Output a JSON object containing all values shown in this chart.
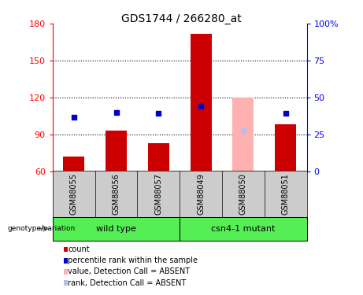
{
  "title": "GDS1744 / 266280_at",
  "samples": [
    "GSM88055",
    "GSM88056",
    "GSM88057",
    "GSM88049",
    "GSM88050",
    "GSM88051"
  ],
  "count_values": [
    72,
    93,
    83,
    172,
    null,
    98
  ],
  "count_absent": [
    null,
    null,
    null,
    null,
    120,
    null
  ],
  "rank_values": [
    104,
    108,
    107,
    113,
    null,
    107
  ],
  "rank_absent": [
    null,
    null,
    null,
    null,
    93,
    null
  ],
  "ylim_left": [
    60,
    180
  ],
  "ylim_right": [
    0,
    100
  ],
  "yticks_left": [
    60,
    90,
    120,
    150,
    180
  ],
  "yticks_right": [
    0,
    25,
    50,
    75,
    100
  ],
  "ytick_right_labels": [
    "0",
    "25",
    "50",
    "75",
    "100%"
  ],
  "bar_color": "#cc0000",
  "bar_absent_color": "#ffb0b0",
  "rank_color": "#0000cc",
  "rank_absent_color": "#b8bce8",
  "bg_color": "#ffffff",
  "group_bg_color": "#55ee55",
  "sample_bg_color": "#cccccc",
  "bar_width": 0.5,
  "grid_yticks": [
    90,
    120,
    150
  ],
  "legend_items": [
    {
      "color": "#cc0000",
      "label": "count"
    },
    {
      "color": "#0000cc",
      "label": "percentile rank within the sample"
    },
    {
      "color": "#ffb0b0",
      "label": "value, Detection Call = ABSENT"
    },
    {
      "color": "#b8bce8",
      "label": "rank, Detection Call = ABSENT"
    }
  ]
}
